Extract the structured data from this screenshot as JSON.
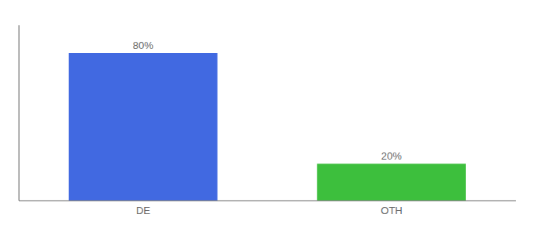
{
  "chart_data": {
    "type": "bar",
    "categories": [
      "DE",
      "OTH"
    ],
    "values": [
      80,
      20
    ],
    "value_labels": [
      "80%",
      "20%"
    ],
    "colors": [
      "#4169e1",
      "#3dbf3d"
    ],
    "ylim": [
      0,
      95
    ],
    "data_labels": true,
    "tick_labels": "x",
    "grid": false
  }
}
